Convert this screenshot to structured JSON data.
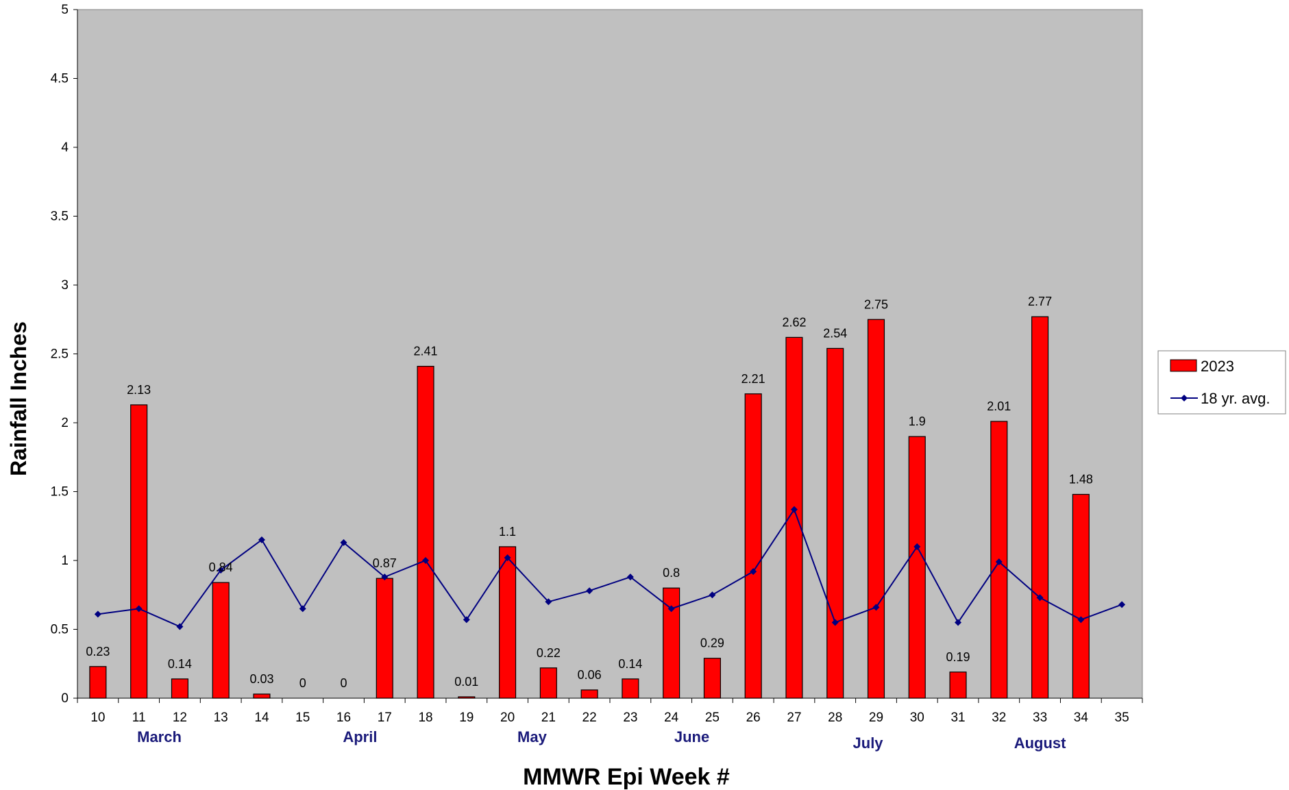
{
  "chart_data": {
    "type": "bar",
    "xlabel": "MMWR Epi Week #",
    "ylabel": "Rainfall Inches",
    "ylim": [
      0,
      5
    ],
    "yticks": [
      "0",
      "0.5",
      "1",
      "1.5",
      "2",
      "2.5",
      "3",
      "3.5",
      "4",
      "4.5",
      "5"
    ],
    "categories": [
      "10",
      "11",
      "12",
      "13",
      "14",
      "15",
      "16",
      "17",
      "18",
      "19",
      "20",
      "21",
      "22",
      "23",
      "24",
      "25",
      "26",
      "27",
      "28",
      "29",
      "30",
      "31",
      "32",
      "33",
      "34",
      "35"
    ],
    "months": [
      {
        "label": "March",
        "week": 11.5,
        "row": 0
      },
      {
        "label": "April",
        "week": 16.4,
        "row": 0
      },
      {
        "label": "May",
        "week": 20.6,
        "row": 0
      },
      {
        "label": "June",
        "week": 24.5,
        "row": 0
      },
      {
        "label": "July",
        "week": 28.8,
        "row": 1
      },
      {
        "label": "August",
        "week": 33.0,
        "row": 1
      }
    ],
    "series": [
      {
        "name": "2023",
        "type": "bar",
        "color": "#ff0000",
        "values": [
          0.23,
          2.13,
          0.14,
          0.84,
          0.03,
          0,
          0,
          0.87,
          2.41,
          0.01,
          1.1,
          0.22,
          0.06,
          0.14,
          0.8,
          0.29,
          2.21,
          2.62,
          2.54,
          2.75,
          1.9,
          0.19,
          2.01,
          2.77,
          1.48,
          null
        ],
        "labels": [
          "0.23",
          "2.13",
          "0.14",
          "0.84",
          "0.03",
          "0",
          "0",
          "0.87",
          "2.41",
          "0.01",
          "1.1",
          "0.22",
          "0.06",
          "0.14",
          "0.8",
          "0.29",
          "2.21",
          "2.62",
          "2.54",
          "2.75",
          "1.9",
          "0.19",
          "2.01",
          "2.77",
          "1.48",
          ""
        ]
      },
      {
        "name": "18 yr. avg.",
        "type": "line",
        "color": "#000080",
        "values": [
          0.61,
          0.65,
          0.52,
          0.93,
          1.15,
          0.65,
          1.13,
          0.88,
          1.0,
          0.57,
          1.02,
          0.7,
          0.78,
          0.88,
          0.65,
          0.75,
          0.92,
          1.37,
          0.55,
          0.66,
          1.1,
          0.55,
          0.99,
          0.73,
          0.57,
          0.68
        ]
      }
    ],
    "plot_background": "#c0c0c0",
    "grid": false,
    "legend_position": "right"
  }
}
